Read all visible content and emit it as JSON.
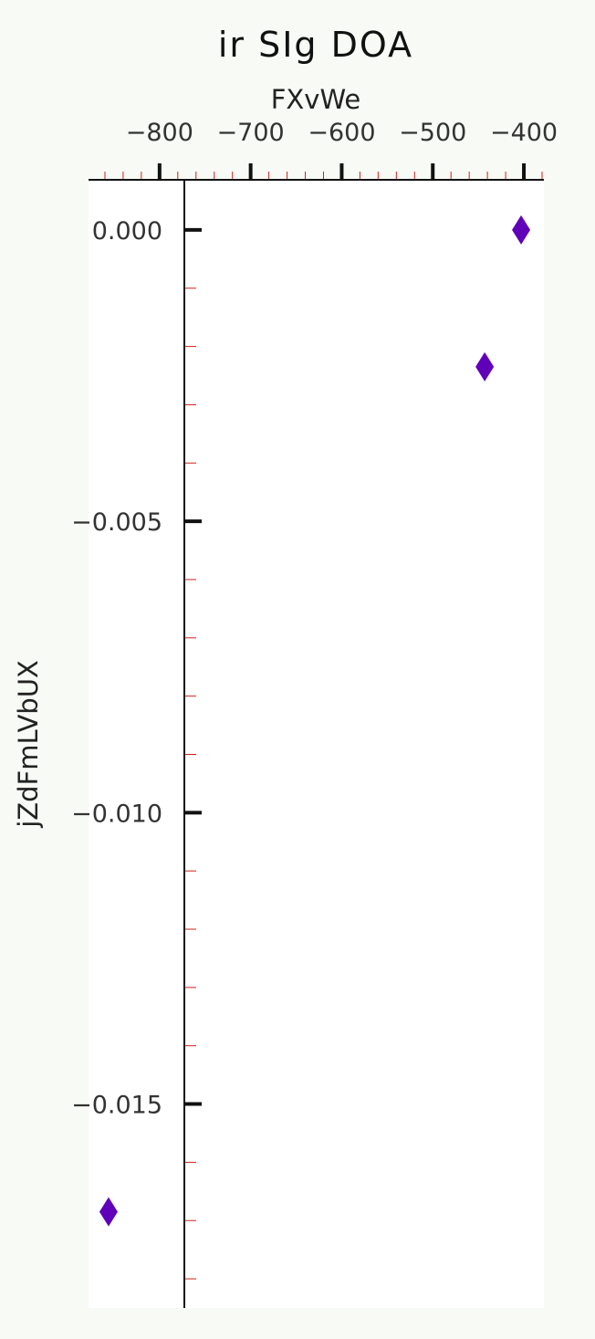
{
  "chart_data": {
    "type": "scatter",
    "title": "ir SIg DOA",
    "xlabel": "FXvWe",
    "ylabel": "jZdFmLVbUX",
    "x_axis_position": "top",
    "xlim": [
      -878,
      -378
    ],
    "ylim": [
      -0.0185,
      0.00086
    ],
    "xticks": [
      -800,
      -700,
      -600,
      -500,
      -400
    ],
    "xtick_labels": [
      "−800",
      "−700",
      "−600",
      "−500",
      "−400"
    ],
    "yticks": [
      0.0,
      -0.005,
      -0.01,
      -0.015
    ],
    "ytick_labels": [
      "0.000",
      "−0.005",
      "−0.010",
      "−0.015"
    ],
    "grid": false,
    "marker": "diamond",
    "series": [
      {
        "x": [
          -403,
          -443,
          -856
        ],
        "y": [
          0.0,
          -0.00235,
          -0.01685
        ],
        "color": "#6000b8"
      }
    ],
    "colors": {
      "page_background": "#f8faf5",
      "plot_background": "#ffffff",
      "minor_tick": "#d02020",
      "axis": "#111111"
    }
  }
}
